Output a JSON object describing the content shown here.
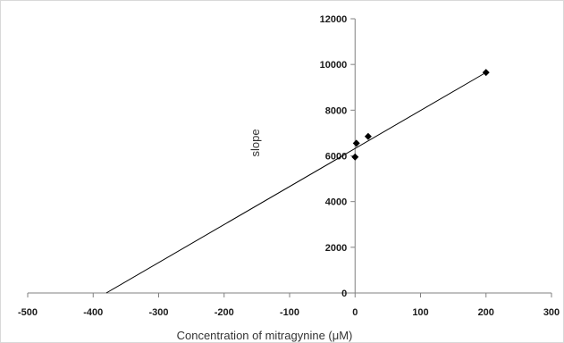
{
  "chart_data": {
    "type": "scatter",
    "title": "",
    "xlabel": "Concentration of mitragynine (μM)",
    "ylabel": "slope",
    "xlim": [
      -500,
      300
    ],
    "ylim": [
      0,
      12000
    ],
    "x_ticks": [
      -500,
      -400,
      -300,
      -200,
      -100,
      0,
      100,
      200,
      300
    ],
    "y_ticks": [
      0,
      2000,
      4000,
      6000,
      8000,
      10000,
      12000
    ],
    "x_tick_labels": [
      "-500",
      "-400",
      "-300",
      "-200",
      "-100",
      "0",
      "100",
      "200",
      "300"
    ],
    "y_tick_labels": [
      "0",
      "2000",
      "4000",
      "6000",
      "8000",
      "10000",
      "12000"
    ],
    "grid": false,
    "marker": "diamond",
    "marker_color": "#000000",
    "series": [
      {
        "points": [
          {
            "x": 0,
            "y": 5950
          },
          {
            "x": 2,
            "y": 6550
          },
          {
            "x": 20,
            "y": 6850
          },
          {
            "x": 200,
            "y": 9650
          }
        ]
      }
    ],
    "trendline": {
      "type": "linear",
      "x_start": -380,
      "y_start": 0,
      "x_end": 200,
      "y_end": 9650,
      "color": "#000000"
    }
  }
}
